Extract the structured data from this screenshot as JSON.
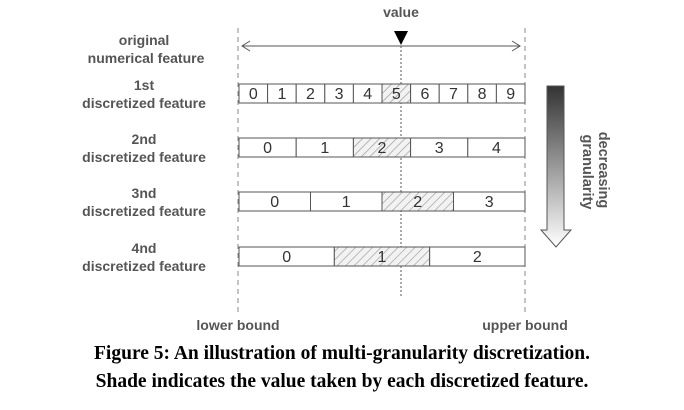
{
  "diagram": {
    "value_label": "value",
    "original_label": [
      "original",
      "numerical feature"
    ],
    "lower_bound": "lower bound",
    "upper_bound": "upper bound",
    "granularity_label": [
      "decreasing",
      "granularity"
    ],
    "features": [
      {
        "label": [
          "1st",
          "discretized feature"
        ],
        "cells": [
          "0",
          "1",
          "2",
          "3",
          "4",
          "5",
          "6",
          "7",
          "8",
          "9"
        ],
        "shaded_index": 5
      },
      {
        "label": [
          "2nd",
          "discretized feature"
        ],
        "cells": [
          "0",
          "1",
          "2",
          "3",
          "4"
        ],
        "shaded_index": 2
      },
      {
        "label": [
          "3nd",
          "discretized feature"
        ],
        "cells": [
          "0",
          "1",
          "2",
          "3"
        ],
        "shaded_index": 2
      },
      {
        "label": [
          "4nd",
          "discretized feature"
        ],
        "cells": [
          "0",
          "1",
          "2"
        ],
        "shaded_index": 1
      }
    ]
  },
  "caption": {
    "line1": "Figure 5: An illustration of multi-granularity discretization.",
    "line2": "Shade indicates the value taken by each discretized feature."
  }
}
